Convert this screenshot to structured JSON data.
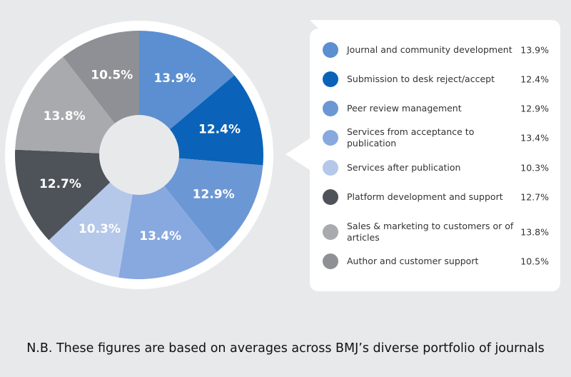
{
  "chart_data": {
    "type": "pie",
    "donut": true,
    "categories": [
      "Journal and community development",
      "Submission to desk reject/accept",
      "Peer review management",
      "Services from acceptance to publication",
      "Services after publication",
      "Platform development and support",
      "Sales & marketing to customers or of articles",
      "Author and customer support"
    ],
    "values": [
      13.9,
      12.4,
      12.9,
      13.4,
      10.3,
      12.7,
      13.8,
      10.5
    ],
    "value_labels": [
      "13.9%",
      "12.4%",
      "12.9%",
      "13.4%",
      "10.3%",
      "12.7%",
      "13.8%",
      "10.5%"
    ],
    "colors": [
      "#5b8fd1",
      "#0a63b8",
      "#6c97d5",
      "#88a9df",
      "#b5c8ea",
      "#4e5359",
      "#a8aaae",
      "#8e9095"
    ],
    "note": "N.B. These figures are based on averages across BMJ’s diverse portfolio of journals"
  }
}
